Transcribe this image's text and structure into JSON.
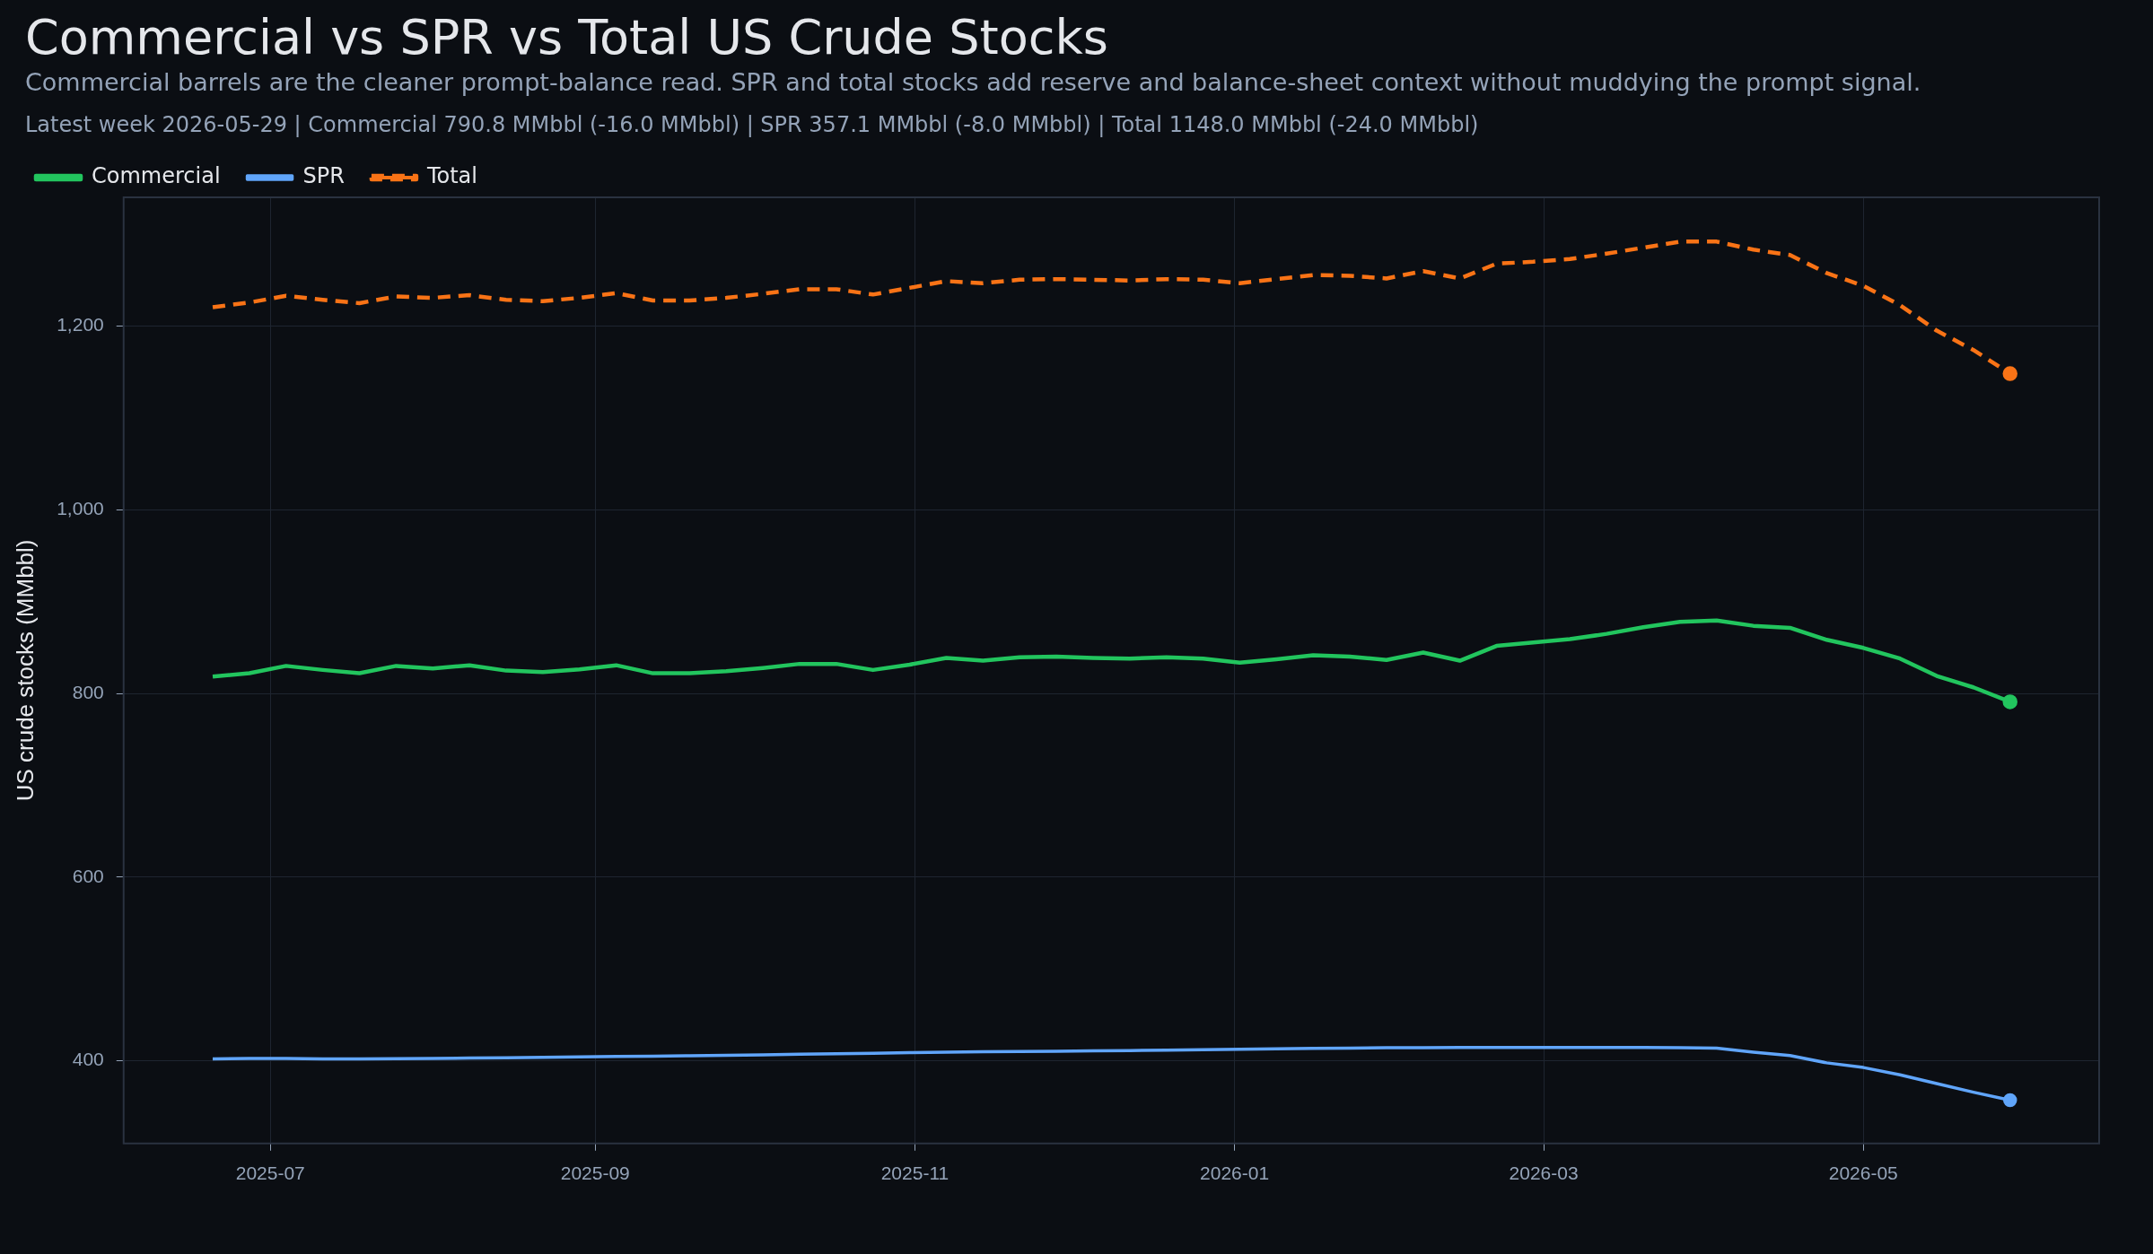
{
  "chart_data": {
    "type": "line",
    "title": "Commercial vs SPR vs Total US Crude Stocks",
    "subtitle": "Commercial barrels are the cleaner prompt-balance read. SPR and total stocks add reserve and balance-sheet context without muddying the prompt signal.",
    "annotations": [
      "Latest week 2026-05-29  |  Commercial 790.8 MMbbl (-16.0 MMbbl)  |  SPR 357.1 MMbbl (-8.0 MMbbl)  |  Total 1148.0 MMbbl (-24.0 MMbbl)"
    ],
    "ylabel": "US crude stocks (MMbbl)",
    "x": [
      "2025-06-20",
      "2025-06-27",
      "2025-07-04",
      "2025-07-11",
      "2025-07-18",
      "2025-07-25",
      "2025-08-01",
      "2025-08-08",
      "2025-08-15",
      "2025-08-22",
      "2025-08-29",
      "2025-09-05",
      "2025-09-12",
      "2025-09-19",
      "2025-09-26",
      "2025-10-03",
      "2025-10-10",
      "2025-10-17",
      "2025-10-24",
      "2025-10-31",
      "2025-11-07",
      "2025-11-14",
      "2025-11-21",
      "2025-11-28",
      "2025-12-05",
      "2025-12-12",
      "2025-12-19",
      "2025-12-26",
      "2026-01-02",
      "2026-01-09",
      "2026-01-16",
      "2026-01-23",
      "2026-01-30",
      "2026-02-06",
      "2026-02-13",
      "2026-02-20",
      "2026-02-27",
      "2026-03-06",
      "2026-03-13",
      "2026-03-20",
      "2026-03-27",
      "2026-04-03",
      "2026-04-10",
      "2026-04-17",
      "2026-04-24",
      "2026-05-01",
      "2026-05-08",
      "2026-05-15",
      "2026-05-22",
      "2026-05-29"
    ],
    "series": [
      {
        "name": "Commercial",
        "color": "#22c55e",
        "line_style": "solid",
        "values": [
          818.2,
          821.9,
          829.9,
          825.5,
          821.9,
          829.9,
          827,
          830.6,
          824.8,
          823.3,
          826.2,
          830.6,
          821.9,
          821.9,
          824.1,
          827.7,
          832.1,
          832.1,
          825.5,
          831.3,
          838.6,
          835.6,
          839.3,
          840,
          838.6,
          837.9,
          839.3,
          837.9,
          833.5,
          837.1,
          841.5,
          840,
          836.4,
          844.4,
          835.6,
          851.7,
          855.4,
          859,
          864.8,
          872.1,
          877.9,
          879.4,
          873.6,
          871.4,
          858.3,
          849.5,
          837.9,
          819,
          806.6,
          790.8
        ]
      },
      {
        "name": "SPR",
        "color": "#60a5fa",
        "line_style": "solid",
        "values": [
          402,
          402.5,
          402.5,
          402,
          402,
          402.3,
          402.6,
          403,
          403.3,
          403.8,
          404.3,
          404.7,
          405,
          405.5,
          406,
          406.5,
          407.2,
          407.8,
          408.3,
          408.8,
          409.3,
          409.8,
          410.2,
          410.5,
          410.8,
          411.2,
          411.7,
          412,
          412.5,
          413,
          413.5,
          413.9,
          414.2,
          414.4,
          414.5,
          414.6,
          414.6,
          414.6,
          414.6,
          414.6,
          414.3,
          413.8,
          409.5,
          405.8,
          397.8,
          392.7,
          384.7,
          375.2,
          365.8,
          357.1
        ]
      },
      {
        "name": "Total",
        "color": "#f97316",
        "line_style": "dashed",
        "values": [
          1220.4,
          1225.5,
          1232.8,
          1228.4,
          1224.8,
          1232.1,
          1230.6,
          1233.5,
          1228.4,
          1227,
          1230.6,
          1235.7,
          1227.7,
          1227.7,
          1230.6,
          1235,
          1240,
          1240,
          1234.2,
          1241.5,
          1248.8,
          1246.6,
          1250.3,
          1251,
          1250.3,
          1249.5,
          1251,
          1250.3,
          1246.6,
          1251,
          1255.4,
          1254.6,
          1251.7,
          1259.7,
          1251.7,
          1267.8,
          1269.9,
          1272.9,
          1278.7,
          1285.2,
          1291.8,
          1291.8,
          1283.1,
          1277.2,
          1257.6,
          1243.7,
          1222.6,
          1194.9,
          1173.8,
          1148
        ]
      }
    ],
    "xlim": [
      "2025-06-03",
      "2026-06-15"
    ],
    "xticks": [
      "2025-07",
      "2025-09",
      "2025-11",
      "2026-01",
      "2026-03",
      "2026-05"
    ],
    "ylim": [
      310,
      1340
    ],
    "yticks": [
      400,
      600,
      800,
      {
        "value": 1000,
        "label": "1,000"
      },
      {
        "value": 1200,
        "label": "1,200"
      }
    ],
    "grid": true,
    "legend": "top left"
  }
}
